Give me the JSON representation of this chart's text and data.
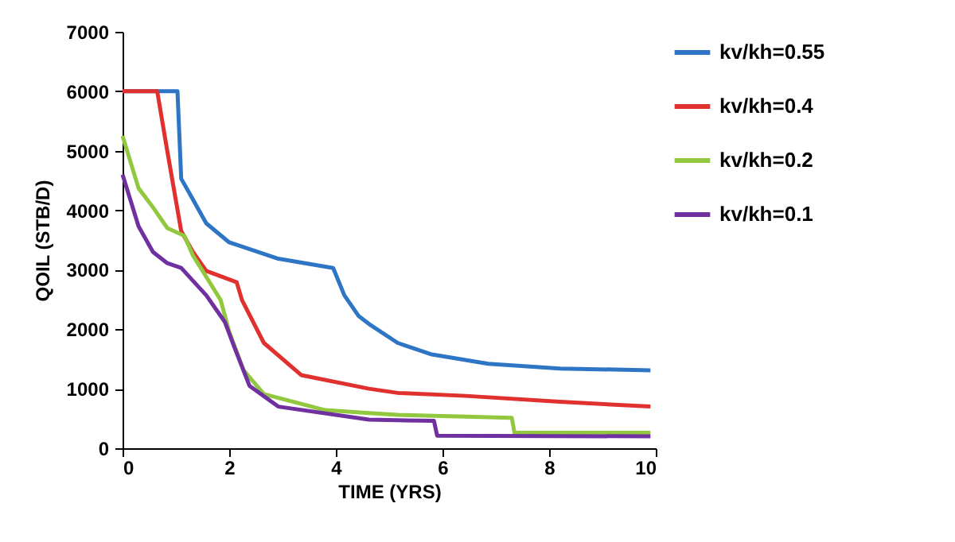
{
  "chart_data": {
    "type": "line",
    "xlabel": "TIME (YRS)",
    "ylabel": "QOIL (STB/D)",
    "xlim": [
      0,
      10
    ],
    "xticks": [
      0,
      2,
      4,
      6,
      8,
      10
    ],
    "ylim": [
      0,
      7000
    ],
    "yticks": [
      0,
      1000,
      2000,
      3000,
      4000,
      5000,
      6000,
      7000
    ],
    "legend": "right",
    "grid": false,
    "marker": "none",
    "line_style": "solid",
    "series": [
      {
        "name": "kv/kh=0.55",
        "color": "#2e75c5",
        "x": [
          0,
          1.03,
          1.1,
          1.32,
          1.57,
          2.0,
          2.9,
          3.95,
          4.16,
          4.43,
          4.62,
          5.16,
          5.78,
          6.86,
          8.2,
          9.9
        ],
        "values": [
          6000,
          6000,
          4530,
          4180,
          3780,
          3460,
          3190,
          3030,
          2570,
          2220,
          2090,
          1770,
          1580,
          1420,
          1340,
          1310
        ]
      },
      {
        "name": "kv/kh=0.4",
        "color": "#e0312f",
        "x": [
          0,
          0.65,
          0.84,
          1.1,
          1.32,
          1.57,
          2.14,
          2.24,
          2.65,
          3.35,
          4.62,
          5.16,
          6.43,
          8.2,
          9.9
        ],
        "values": [
          6000,
          6000,
          4990,
          3650,
          3300,
          2980,
          2790,
          2490,
          1770,
          1230,
          1000,
          930,
          880,
          780,
          700
        ]
      },
      {
        "name": "kv/kh=0.2",
        "color": "#92c740",
        "x": [
          0,
          0.3,
          0.57,
          0.84,
          1.16,
          1.32,
          1.84,
          2.0,
          2.27,
          2.65,
          3.8,
          4.62,
          5.16,
          7.3,
          7.35,
          9.9
        ],
        "values": [
          5250,
          4370,
          4050,
          3700,
          3570,
          3240,
          2490,
          1960,
          1310,
          910,
          640,
          590,
          560,
          510,
          260,
          260
        ]
      },
      {
        "name": "kv/kh=0.1",
        "color": "#7030a0",
        "x": [
          0,
          0.3,
          0.57,
          0.84,
          1.1,
          1.57,
          1.92,
          2.1,
          2.38,
          2.92,
          4.62,
          5.84,
          5.9,
          9.9
        ],
        "values": [
          4600,
          3730,
          3300,
          3110,
          3030,
          2570,
          2120,
          1690,
          1050,
          700,
          480,
          460,
          210,
          200
        ]
      }
    ]
  }
}
